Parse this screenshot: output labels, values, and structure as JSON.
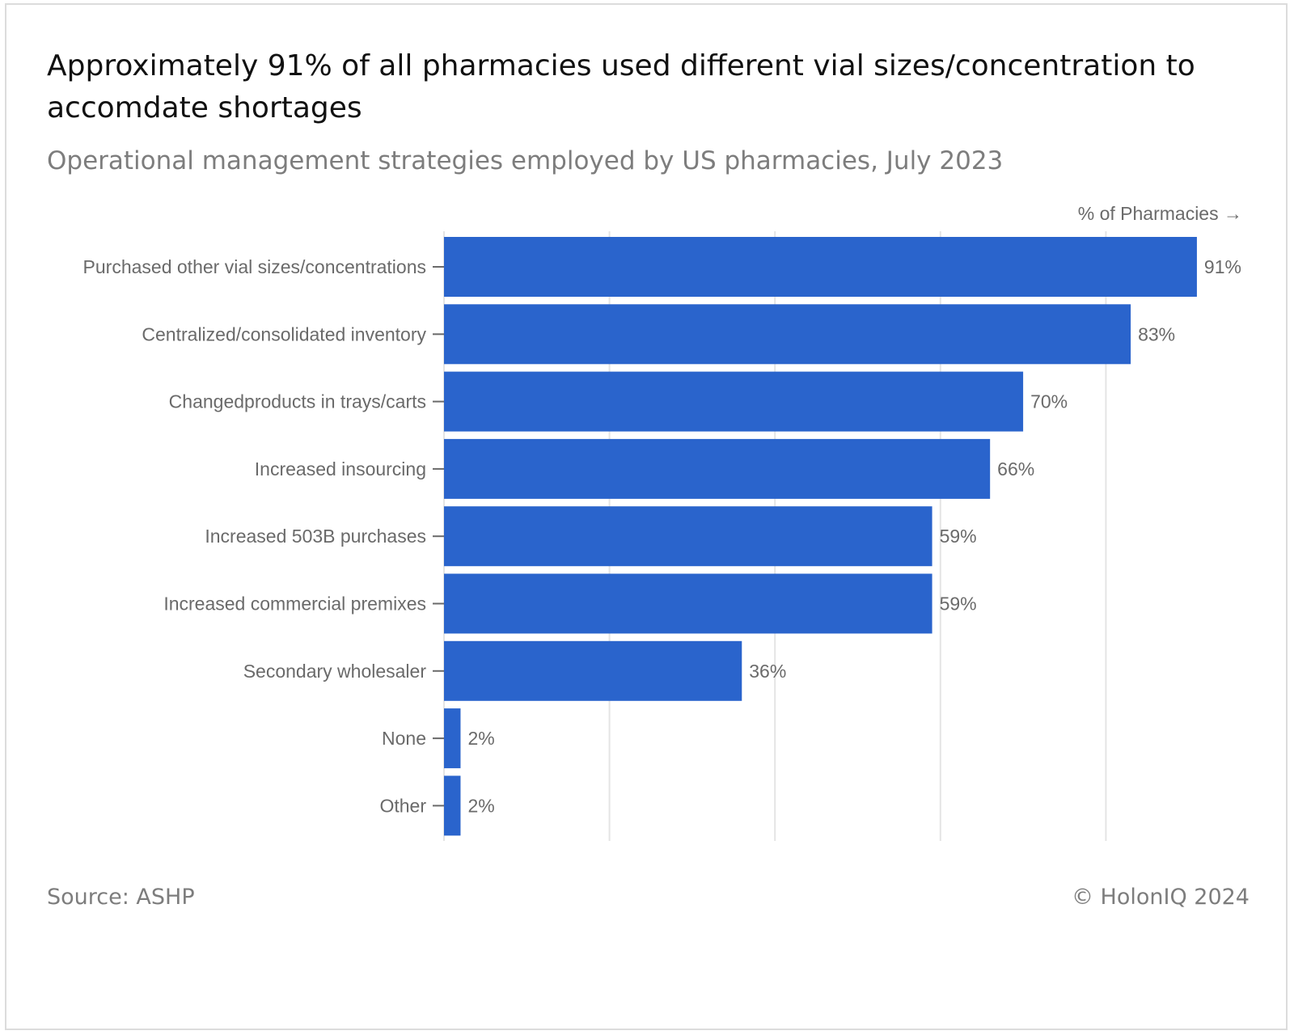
{
  "title": "Approximately 91% of all pharmacies used different vial sizes/concentration to accomdate shortages",
  "subtitle": "Operational management strategies employed by US pharmacies, July 2023",
  "source": "Source: ASHP",
  "copyright": "© HolonIQ 2024",
  "colors": {
    "bar": "#2a64cc",
    "grid": "#e4e4e4",
    "label": "#6a6a6a"
  },
  "chart_data": {
    "type": "bar",
    "orientation": "horizontal",
    "axis_label": "% of Pharmacies →",
    "xlim": [
      0,
      100
    ],
    "grid": true,
    "categories": [
      "Purchased other vial sizes/concentrations",
      "Centralized/consolidated inventory",
      "Changedproducts in trays/carts",
      "Increased insourcing",
      "Increased 503B purchases",
      "Increased commercial premixes",
      "Secondary wholesaler",
      "None",
      "Other"
    ],
    "values": [
      91,
      83,
      70,
      66,
      59,
      59,
      36,
      2,
      2
    ],
    "value_labels": [
      "91%",
      "83%",
      "70%",
      "66%",
      "59%",
      "59%",
      "36%",
      "2%",
      "2%"
    ]
  }
}
